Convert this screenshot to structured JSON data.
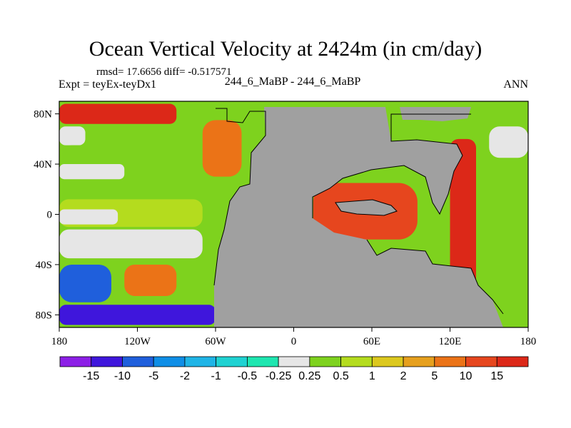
{
  "header": {
    "title": "Ocean Vertical Velocity at 2424m (in cm/day)",
    "stats": "rmsd= 17.6656 diff= -0.517571",
    "expt": "Expt = teyEx-teyDx1",
    "center_label": "244_6_MaBP - 244_6_MaBP",
    "season": "ANN"
  },
  "chart_data": {
    "type": "heatmap",
    "title": "Ocean Vertical Velocity at 2424m (in cm/day)",
    "units": "cm/day",
    "x_range": [
      -180,
      180
    ],
    "y_range": [
      -90,
      90
    ],
    "x_ticks": [
      {
        "value": -180,
        "label": "180"
      },
      {
        "value": -120,
        "label": "120W"
      },
      {
        "value": -60,
        "label": "60W"
      },
      {
        "value": 0,
        "label": "0"
      },
      {
        "value": 60,
        "label": "60E"
      },
      {
        "value": 120,
        "label": "120E"
      },
      {
        "value": 180,
        "label": "180"
      }
    ],
    "y_ticks": [
      {
        "value": 80,
        "label": "80N"
      },
      {
        "value": 40,
        "label": "40N"
      },
      {
        "value": 0,
        "label": "0"
      },
      {
        "value": -40,
        "label": "40S"
      },
      {
        "value": -80,
        "label": "80S"
      }
    ],
    "levels": [
      "-15",
      "-10",
      "-5",
      "-2",
      "-1",
      "-0.5",
      "-0.25",
      "0.25",
      "0.5",
      "1",
      "2",
      "5",
      "10",
      "15"
    ],
    "colors": [
      "#8c1fe6",
      "#3f16dc",
      "#1f5fdc",
      "#0f8ee6",
      "#1fb4e6",
      "#1fd2d2",
      "#1ee6b0",
      "#e6e6e6",
      "#7ed21e",
      "#b4dc1e",
      "#dcc81e",
      "#e6a01e",
      "#eb7317",
      "#e6461e",
      "#dc2818"
    ],
    "land_color": "#a0a0a0",
    "regions": [
      {
        "name": "north-pacific-high-latitude-band",
        "lon": [
          -180,
          -90
        ],
        "lat": [
          72,
          88
        ],
        "level": 14
      },
      {
        "name": "north-pacific-upper-white",
        "lon": [
          -180,
          -160
        ],
        "lat": [
          55,
          70
        ],
        "level": 7
      },
      {
        "name": "north-pacific-green",
        "lon": [
          -180,
          -60
        ],
        "lat": [
          25,
          55
        ],
        "level": 8
      },
      {
        "name": "north-pacific-white-tongue",
        "lon": [
          -180,
          -130
        ],
        "lat": [
          28,
          40
        ],
        "level": 7
      },
      {
        "name": "equatorial-pacific-yellow",
        "lon": [
          -180,
          -70
        ],
        "lat": [
          -10,
          12
        ],
        "level": 9
      },
      {
        "name": "equatorial-white-band",
        "lon": [
          -180,
          -135
        ],
        "lat": [
          -8,
          4
        ],
        "level": 7
      },
      {
        "name": "south-pacific-white",
        "lon": [
          -180,
          -70
        ],
        "lat": [
          -35,
          -12
        ],
        "level": 7
      },
      {
        "name": "south-pacific-blue-gyre",
        "lon": [
          -180,
          -140
        ],
        "lat": [
          -70,
          -40
        ],
        "level": 2
      },
      {
        "name": "south-pacific-orange-gyre",
        "lon": [
          -130,
          -90
        ],
        "lat": [
          -65,
          -40
        ],
        "level": 12
      },
      {
        "name": "southern-ocean-band",
        "lon": [
          -180,
          -60
        ],
        "lat": [
          -88,
          -72
        ],
        "level": 1
      },
      {
        "name": "atlantic-boundary",
        "lon": [
          -70,
          -40
        ],
        "lat": [
          30,
          75
        ],
        "level": 12
      },
      {
        "name": "inner-basin-ring",
        "lon": [
          15,
          95
        ],
        "lat": [
          -20,
          25
        ],
        "level": 13
      },
      {
        "name": "east-boundary-red",
        "lon": [
          120,
          140
        ],
        "lat": [
          -60,
          60
        ],
        "level": 14
      },
      {
        "name": "northeast-white",
        "lon": [
          150,
          180
        ],
        "lat": [
          45,
          70
        ],
        "level": 7
      },
      {
        "name": "east-equatorial-green",
        "lon": [
          140,
          180
        ],
        "lat": [
          -30,
          30
        ],
        "level": 8
      }
    ]
  }
}
